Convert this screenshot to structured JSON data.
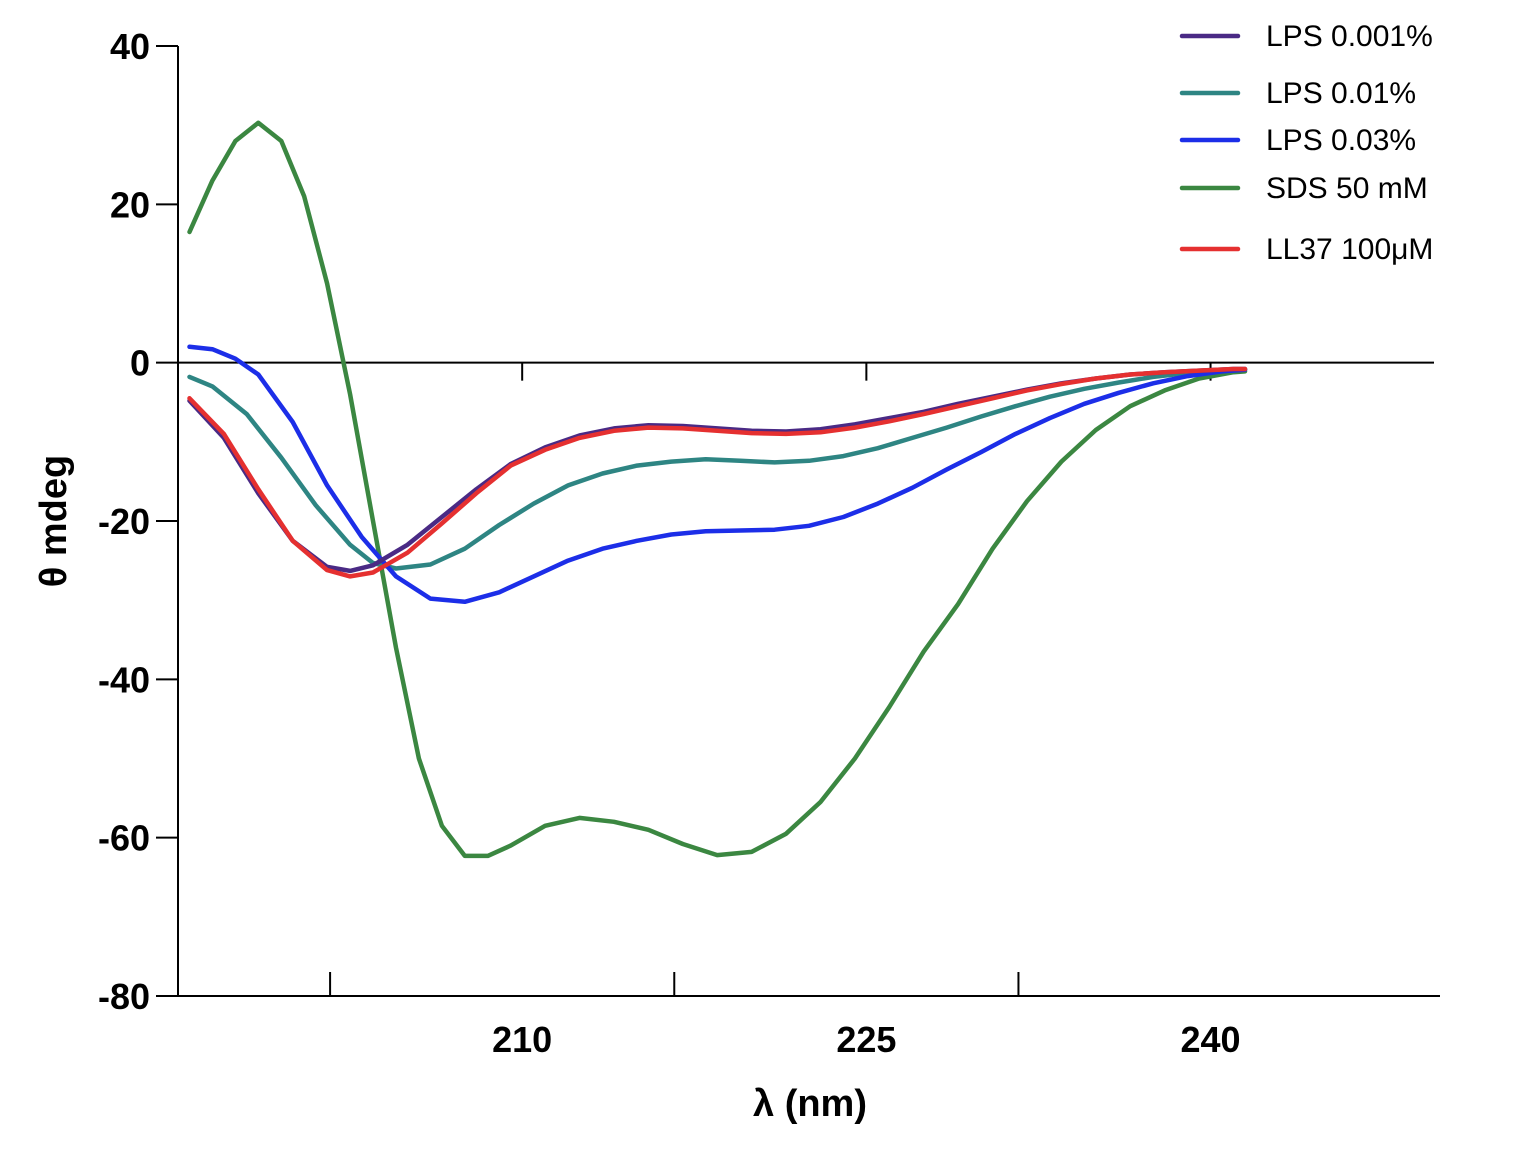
{
  "chart_data": {
    "type": "line",
    "title": "",
    "xlabel": "λ (nm)",
    "ylabel": "θ mdeg",
    "xlim": [
      195,
      250
    ],
    "ylim": [
      -80,
      40
    ],
    "xticks": [
      210,
      225,
      240
    ],
    "yticks": [
      40,
      20,
      0,
      -20,
      -40,
      -60,
      -80
    ],
    "grid": false,
    "legend_position": "top-right",
    "series": [
      {
        "name": "LPS 0.001%",
        "color": "#4a2a85",
        "points": [
          [
            195.5,
            -4.8
          ],
          [
            197,
            -9.5
          ],
          [
            198.5,
            -16.5
          ],
          [
            200,
            -22.5
          ],
          [
            201.5,
            -25.8
          ],
          [
            202.5,
            -26.3
          ],
          [
            203.5,
            -25.6
          ],
          [
            205,
            -23
          ],
          [
            206.5,
            -19.5
          ],
          [
            208,
            -16
          ],
          [
            209.5,
            -12.8
          ],
          [
            211,
            -10.7
          ],
          [
            212.5,
            -9.2
          ],
          [
            214,
            -8.3
          ],
          [
            215.5,
            -7.9
          ],
          [
            217,
            -8
          ],
          [
            218.5,
            -8.3
          ],
          [
            220,
            -8.6
          ],
          [
            221.5,
            -8.7
          ],
          [
            223,
            -8.4
          ],
          [
            224.5,
            -7.8
          ],
          [
            226,
            -7
          ],
          [
            227.5,
            -6.2
          ],
          [
            229,
            -5.2
          ],
          [
            230.5,
            -4.3
          ],
          [
            232,
            -3.4
          ],
          [
            233.5,
            -2.6
          ],
          [
            235,
            -2
          ],
          [
            236.5,
            -1.5
          ],
          [
            238,
            -1.2
          ],
          [
            239.5,
            -1
          ],
          [
            241,
            -0.8
          ],
          [
            241.5,
            -0.8
          ]
        ]
      },
      {
        "name": "LPS 0.01%",
        "color": "#2e8583",
        "points": [
          [
            195.5,
            -1.8
          ],
          [
            196.5,
            -3
          ],
          [
            198,
            -6.5
          ],
          [
            199.5,
            -12
          ],
          [
            201,
            -18
          ],
          [
            202.5,
            -23
          ],
          [
            203.5,
            -25.3
          ],
          [
            204.5,
            -26
          ],
          [
            206,
            -25.5
          ],
          [
            207.5,
            -23.5
          ],
          [
            209,
            -20.5
          ],
          [
            210.5,
            -17.8
          ],
          [
            212,
            -15.5
          ],
          [
            213.5,
            -14
          ],
          [
            215,
            -13
          ],
          [
            216.5,
            -12.5
          ],
          [
            218,
            -12.2
          ],
          [
            219.5,
            -12.4
          ],
          [
            221,
            -12.6
          ],
          [
            222.5,
            -12.4
          ],
          [
            224,
            -11.8
          ],
          [
            225.5,
            -10.8
          ],
          [
            227,
            -9.5
          ],
          [
            228.5,
            -8.2
          ],
          [
            230,
            -6.8
          ],
          [
            231.5,
            -5.5
          ],
          [
            233,
            -4.3
          ],
          [
            234.5,
            -3.3
          ],
          [
            236,
            -2.5
          ],
          [
            237.5,
            -1.8
          ],
          [
            239,
            -1.3
          ],
          [
            240.5,
            -1
          ],
          [
            241.5,
            -0.9
          ]
        ]
      },
      {
        "name": "LPS 0.03%",
        "color": "#1c2ee8",
        "points": [
          [
            195.5,
            2
          ],
          [
            196.5,
            1.7
          ],
          [
            197.5,
            0.5
          ],
          [
            198.5,
            -1.5
          ],
          [
            200,
            -7.5
          ],
          [
            201.5,
            -15.5
          ],
          [
            203,
            -22
          ],
          [
            204.5,
            -27
          ],
          [
            206,
            -29.8
          ],
          [
            207.5,
            -30.2
          ],
          [
            209,
            -29
          ],
          [
            210.5,
            -27
          ],
          [
            212,
            -25
          ],
          [
            213.5,
            -23.5
          ],
          [
            215,
            -22.5
          ],
          [
            216.5,
            -21.7
          ],
          [
            218,
            -21.3
          ],
          [
            219.5,
            -21.2
          ],
          [
            221,
            -21.1
          ],
          [
            222.5,
            -20.6
          ],
          [
            224,
            -19.5
          ],
          [
            225.5,
            -17.8
          ],
          [
            227,
            -15.8
          ],
          [
            228.5,
            -13.5
          ],
          [
            230,
            -11.3
          ],
          [
            231.5,
            -9
          ],
          [
            233,
            -7
          ],
          [
            234.5,
            -5.2
          ],
          [
            236,
            -3.8
          ],
          [
            237.5,
            -2.6
          ],
          [
            239,
            -1.7
          ],
          [
            240.5,
            -1.1
          ],
          [
            241.5,
            -0.9
          ]
        ]
      },
      {
        "name": "SDS 50 mM",
        "color": "#3b8741",
        "points": [
          [
            195.5,
            16.5
          ],
          [
            196.5,
            23
          ],
          [
            197.5,
            28
          ],
          [
            198.5,
            30.3
          ],
          [
            199.5,
            28
          ],
          [
            200.5,
            21
          ],
          [
            201.5,
            10
          ],
          [
            202.5,
            -4
          ],
          [
            203.5,
            -20
          ],
          [
            204.5,
            -36
          ],
          [
            205.5,
            -50
          ],
          [
            206.5,
            -58.5
          ],
          [
            207.5,
            -62.3
          ],
          [
            208.5,
            -62.3
          ],
          [
            209.5,
            -61
          ],
          [
            211,
            -58.5
          ],
          [
            212.5,
            -57.5
          ],
          [
            214,
            -58
          ],
          [
            215.5,
            -59
          ],
          [
            217,
            -60.8
          ],
          [
            218.5,
            -62.2
          ],
          [
            220,
            -61.8
          ],
          [
            221.5,
            -59.5
          ],
          [
            223,
            -55.5
          ],
          [
            224.5,
            -50
          ],
          [
            226,
            -43.5
          ],
          [
            227.5,
            -36.5
          ],
          [
            229,
            -30.5
          ],
          [
            230.5,
            -23.5
          ],
          [
            232,
            -17.5
          ],
          [
            233.5,
            -12.5
          ],
          [
            235,
            -8.5
          ],
          [
            236.5,
            -5.5
          ],
          [
            238,
            -3.5
          ],
          [
            239.5,
            -2
          ],
          [
            241,
            -1.2
          ],
          [
            241.5,
            -1.1
          ]
        ]
      },
      {
        "name": "LL37 100μM",
        "color": "#e53030",
        "points": [
          [
            195.5,
            -4.5
          ],
          [
            197,
            -9
          ],
          [
            198.5,
            -16
          ],
          [
            200,
            -22.5
          ],
          [
            201.5,
            -26.2
          ],
          [
            202.5,
            -27
          ],
          [
            203.5,
            -26.5
          ],
          [
            205,
            -24
          ],
          [
            206.5,
            -20.3
          ],
          [
            208,
            -16.5
          ],
          [
            209.5,
            -13
          ],
          [
            211,
            -11
          ],
          [
            212.5,
            -9.5
          ],
          [
            214,
            -8.6
          ],
          [
            215.5,
            -8.2
          ],
          [
            217,
            -8.3
          ],
          [
            218.5,
            -8.6
          ],
          [
            220,
            -8.9
          ],
          [
            221.5,
            -9
          ],
          [
            223,
            -8.8
          ],
          [
            224.5,
            -8.2
          ],
          [
            226,
            -7.4
          ],
          [
            227.5,
            -6.5
          ],
          [
            229,
            -5.5
          ],
          [
            230.5,
            -4.5
          ],
          [
            232,
            -3.5
          ],
          [
            233.5,
            -2.7
          ],
          [
            235,
            -2
          ],
          [
            236.5,
            -1.5
          ],
          [
            238,
            -1.2
          ],
          [
            239.5,
            -1
          ],
          [
            241,
            -0.8
          ],
          [
            241.5,
            -0.8
          ]
        ]
      }
    ]
  }
}
